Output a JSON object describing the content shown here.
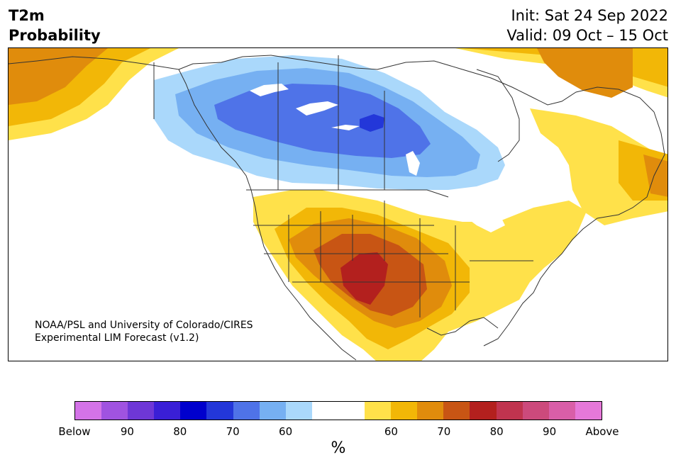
{
  "title": {
    "line1": "T2m",
    "line2": "Probability"
  },
  "header_right": {
    "init": "Init: Sat 24 Sep 2022",
    "valid": "Valid: 09 Oct – 15 Oct"
  },
  "credit": {
    "line1": "NOAA/PSL and University of Colorado/CIRES",
    "line2": "Experimental LIM Forecast (v1.2)"
  },
  "colorbar": {
    "unit": "%",
    "colors": [
      "#d473e8",
      "#a053e0",
      "#6e37d6",
      "#3a1fd6",
      "#0000cd",
      "#2337d9",
      "#4f73e8",
      "#76b0f2",
      "#aad8fb",
      "#ffffff",
      "#ffffff",
      "#ffe14a",
      "#f2b707",
      "#e08c0c",
      "#c85514",
      "#b3201e",
      "#c0344f",
      "#cc4a7c",
      "#d95ea8",
      "#e678d9"
    ],
    "tick_labels": [
      "Below",
      "90",
      "80",
      "70",
      "60",
      "60",
      "70",
      "80",
      "90",
      "Above"
    ]
  },
  "map": {
    "legend_semantics": "Below normal probability (blue) / Above normal probability (orange-red)",
    "colors": {
      "blue_light": "#aad8fb",
      "blue_mid": "#76b0f2",
      "blue_royal": "#4f73e8",
      "blue_deep": "#2337d9",
      "yellow": "#ffe14a",
      "gold": "#f2b707",
      "orange": "#e08c0c",
      "burnt": "#c85514",
      "red": "#b3201e",
      "border": "#333333"
    }
  }
}
